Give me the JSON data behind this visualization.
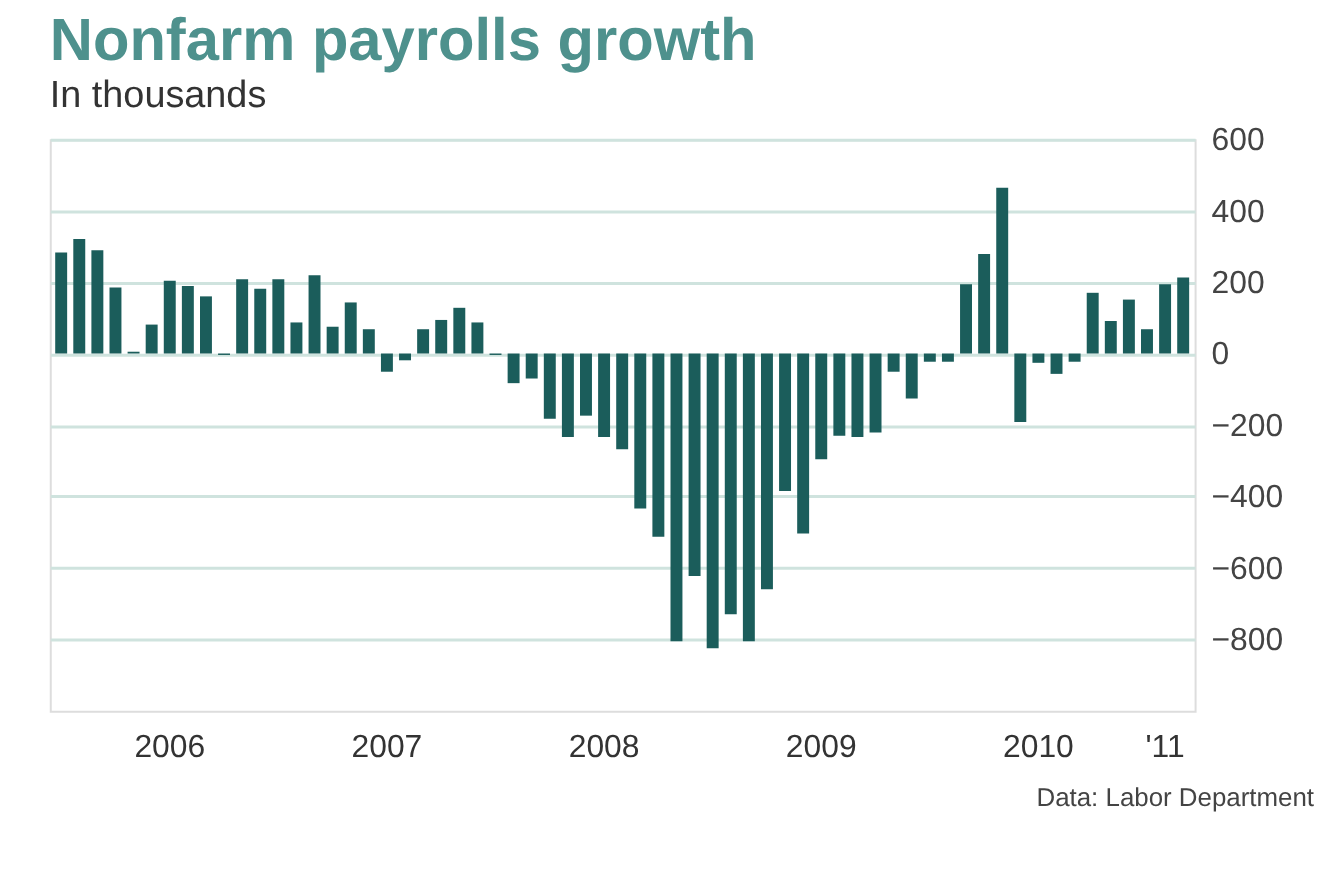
{
  "chart_data": {
    "type": "bar",
    "title": "Nonfarm payrolls growth",
    "subtitle": "In thousands",
    "categories": [
      null,
      null,
      null,
      null,
      null,
      null,
      "2006",
      null,
      null,
      null,
      null,
      null,
      null,
      null,
      null,
      null,
      null,
      null,
      "2007",
      null,
      null,
      null,
      null,
      null,
      null,
      null,
      null,
      null,
      null,
      null,
      "2008",
      null,
      null,
      null,
      null,
      null,
      null,
      null,
      null,
      null,
      null,
      null,
      "2009",
      null,
      null,
      null,
      null,
      null,
      null,
      null,
      null,
      null,
      null,
      null,
      "2010",
      null,
      null,
      null,
      null,
      null,
      null,
      "'11",
      null
    ],
    "values": [
      283,
      321,
      289,
      185,
      5,
      81,
      204,
      189,
      160,
      -4,
      208,
      181,
      208,
      87,
      219,
      75,
      143,
      68,
      -51,
      -19,
      68,
      94,
      128,
      87,
      -4,
      -83,
      -70,
      -183,
      -234,
      -174,
      -234,
      -268,
      -434,
      -513,
      -806,
      -623,
      -825,
      -730,
      -806,
      -660,
      -385,
      -504,
      -296,
      -230,
      -234,
      -221,
      -51,
      -126,
      -23,
      -23,
      194,
      279,
      464,
      -192,
      -26,
      -57,
      -23,
      170,
      91,
      151,
      68,
      194,
      213
    ],
    "color": "#1b5d5b",
    "ylim": [
      -1000,
      600
    ],
    "yticks": [
      600,
      400,
      200,
      0,
      -200,
      -400,
      -600,
      -800
    ],
    "grid": "y",
    "annotations": [
      "Data: Labor Department"
    ]
  }
}
